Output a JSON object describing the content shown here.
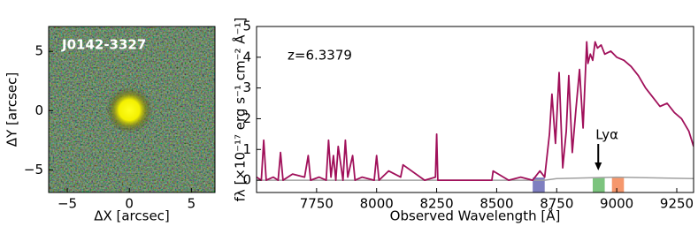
{
  "chart_data": [
    {
      "type": "image",
      "label": "J0142-3327",
      "x_label": "ΔX [arcsec]",
      "y_label": "ΔY [arcsec]",
      "xlim": [
        -6.5,
        6.9
      ],
      "ylim": [
        -6.9,
        7.1
      ],
      "xticks": [
        {
          "value": -5,
          "label": "−5"
        },
        0,
        5
      ],
      "yticks": [
        {
          "value": -5,
          "label": "−5"
        },
        0,
        5
      ],
      "source_position": [
        0,
        0.05
      ]
    },
    {
      "type": "line",
      "x_label": "Observed Wavelength [Å]",
      "y_label": "fλ [×10⁻¹⁷ erg s⁻¹ cm⁻² Å⁻¹]",
      "xlim": [
        7500,
        9320
      ],
      "ylim": [
        -0.4,
        5
      ],
      "xticks": [
        7750,
        8000,
        8250,
        8500,
        8750,
        9000,
        9250
      ],
      "yticks": [
        0,
        1,
        2,
        3,
        4,
        5
      ],
      "annotations": [
        {
          "text": "z=6.3379"
        },
        {
          "text": "Lyα",
          "x": 8923
        }
      ],
      "bands": [
        {
          "range": [
            8650,
            8700
          ],
          "color": "#7f7fc0"
        },
        {
          "range": [
            8900,
            8950
          ],
          "color": "#7cc47e"
        },
        {
          "range": [
            8980,
            9030
          ],
          "color": "#f5976c"
        }
      ],
      "series": [
        {
          "color": "#a0a0a0",
          "x": [
            7500,
            8000,
            8500,
            8700,
            8750,
            9000,
            9320
          ],
          "values": [
            0.0,
            0.0,
            0.0,
            0.0,
            0.05,
            0.1,
            0.05
          ]
        },
        {
          "color": "#a0105a",
          "x": [
            7500,
            7520,
            7530,
            7540,
            7570,
            7590,
            7600,
            7610,
            7650,
            7700,
            7715,
            7725,
            7760,
            7790,
            7800,
            7810,
            7820,
            7830,
            7840,
            7860,
            7870,
            7880,
            7900,
            7910,
            7940,
            7990,
            8000,
            8010,
            8050,
            8100,
            8110,
            8200,
            8245,
            8250,
            8255,
            8300,
            8400,
            8480,
            8485,
            8550,
            8600,
            8650,
            8680,
            8700,
            8720,
            8730,
            8745,
            8760,
            8775,
            8790,
            8800,
            8815,
            8830,
            8845,
            8860,
            8875,
            8880,
            8890,
            8900,
            8910,
            8920,
            8935,
            8950,
            8975,
            9000,
            9030,
            9060,
            9090,
            9120,
            9150,
            9180,
            9210,
            9240,
            9270,
            9300,
            9320
          ],
          "values": [
            0.1,
            0.0,
            1.3,
            0.0,
            0.1,
            0.0,
            0.9,
            0.0,
            0.2,
            0.1,
            0.8,
            0.0,
            0.1,
            0.0,
            1.3,
            0.1,
            0.8,
            0.0,
            1.1,
            0.0,
            1.3,
            0.1,
            0.8,
            0.0,
            0.1,
            0.0,
            0.8,
            0.0,
            0.3,
            0.1,
            0.5,
            0.0,
            0.1,
            1.5,
            0.0,
            0.0,
            0.0,
            0.0,
            0.3,
            0.0,
            0.1,
            0.0,
            0.3,
            0.1,
            1.5,
            2.8,
            1.2,
            3.5,
            0.4,
            1.6,
            3.4,
            0.9,
            2.3,
            3.6,
            1.7,
            4.5,
            3.8,
            4.1,
            3.9,
            4.5,
            4.3,
            4.4,
            4.1,
            4.2,
            4.0,
            3.9,
            3.7,
            3.4,
            3.0,
            2.7,
            2.4,
            2.5,
            2.2,
            2.0,
            1.6,
            1.1
          ]
        }
      ]
    }
  ]
}
